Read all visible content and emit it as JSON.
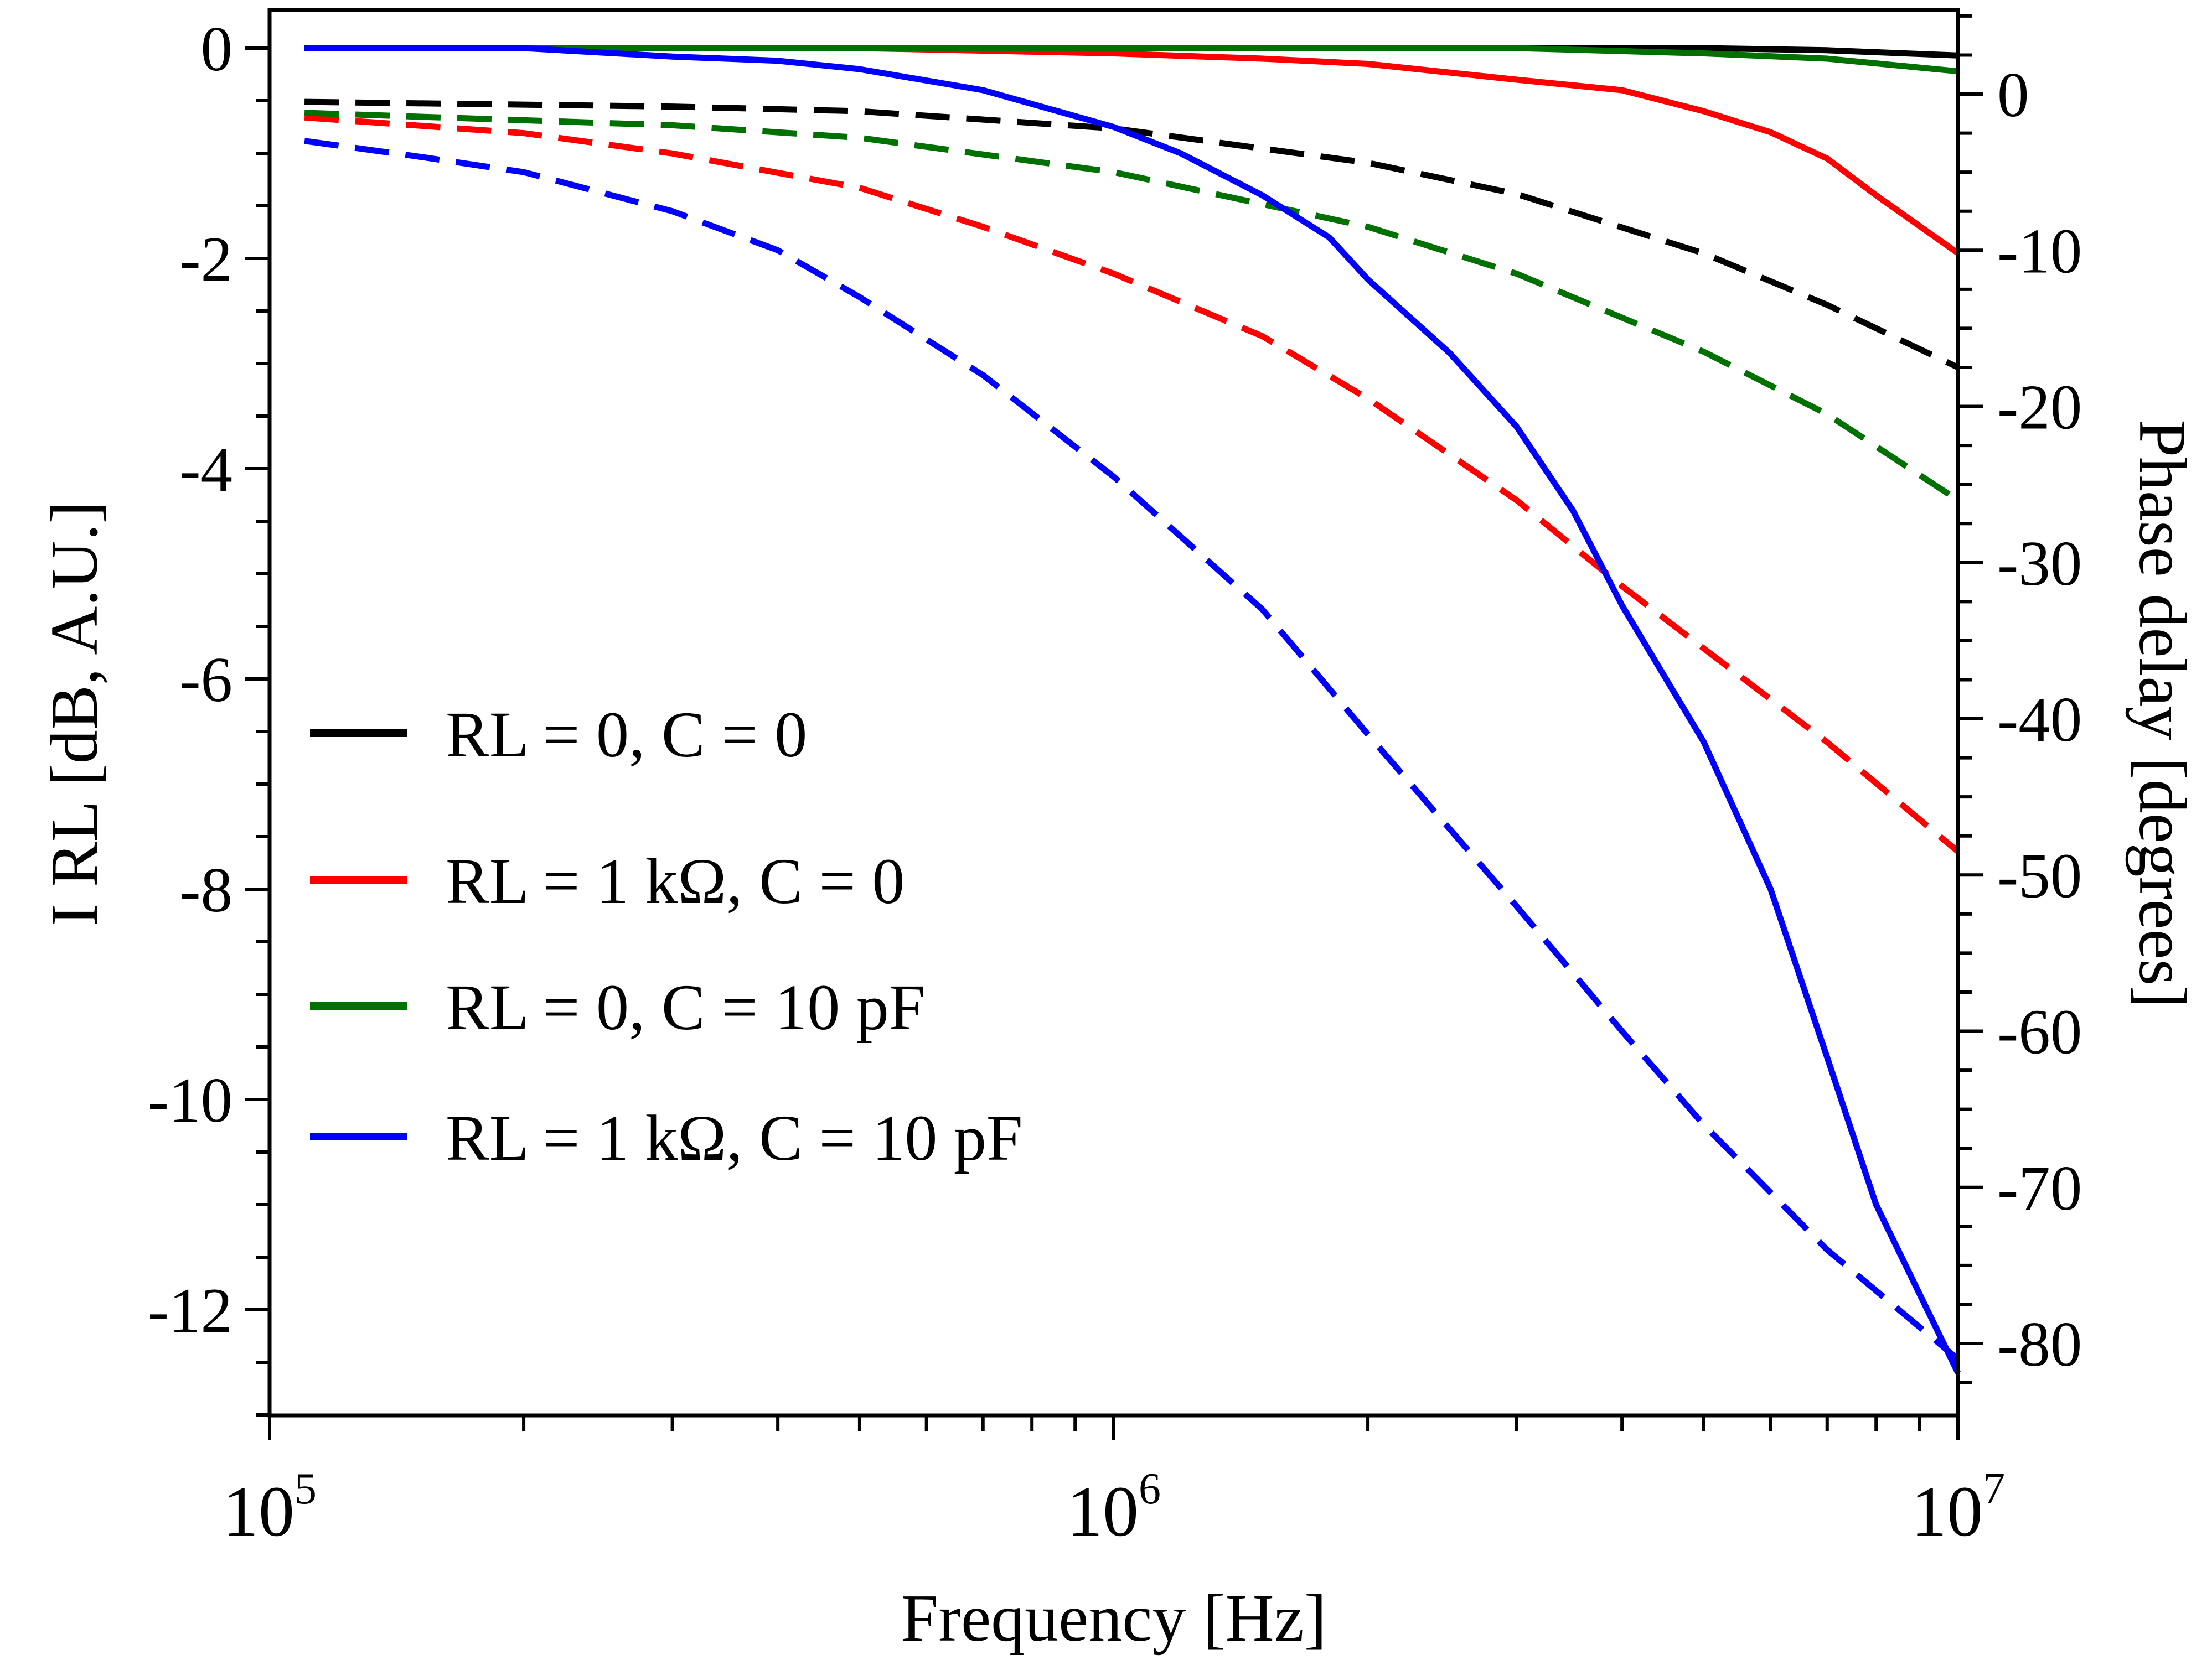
{
  "chart_data": {
    "type": "line",
    "xlabel": "Frequency [Hz]",
    "ylabel_left": "I RL [dB, A.U.]",
    "ylabel_right": "Phase delay [degrees]",
    "x_scale": "log",
    "xlim": [
      100000,
      10000000
    ],
    "ylim_left": [
      -13,
      0.3
    ],
    "ylim_right": [
      -85,
      5
    ],
    "x_ticks": [
      {
        "value": 100000,
        "base": "10",
        "exp": "5"
      },
      {
        "value": 1000000,
        "base": "10",
        "exp": "6"
      },
      {
        "value": 10000000,
        "base": "10",
        "exp": "7"
      }
    ],
    "y_ticks_left": [
      {
        "value": 0,
        "label": "0"
      },
      {
        "value": -2,
        "label": "-2"
      },
      {
        "value": -4,
        "label": "-4"
      },
      {
        "value": -6,
        "label": "-6"
      },
      {
        "value": -8,
        "label": "-8"
      },
      {
        "value": -10,
        "label": "-10"
      },
      {
        "value": -12,
        "label": "-12"
      }
    ],
    "y_ticks_right": [
      {
        "value": 0,
        "label": "0"
      },
      {
        "value": -10,
        "label": "-10"
      },
      {
        "value": -20,
        "label": "-20"
      },
      {
        "value": -30,
        "label": "-30"
      },
      {
        "value": -40,
        "label": "-40"
      },
      {
        "value": -50,
        "label": "-50"
      },
      {
        "value": -60,
        "label": "-60"
      },
      {
        "value": -70,
        "label": "-70"
      },
      {
        "value": -80,
        "label": "-80"
      }
    ],
    "grid": false,
    "legend_position": "center-left",
    "series": [
      {
        "name": "RL = 0, C = 0",
        "color": "#000000",
        "amplitude_db": [
          [
            110000,
            0.0
          ],
          [
            500000,
            0.0
          ],
          [
            1000000,
            0.0
          ],
          [
            2000000,
            0.0
          ],
          [
            5000000,
            0.0
          ],
          [
            7000000,
            -0.02
          ],
          [
            10000000,
            -0.07
          ]
        ],
        "phase_deg": [
          [
            110000,
            -0.5
          ],
          [
            300000,
            -0.8
          ],
          [
            500000,
            -1.1
          ],
          [
            1000000,
            -2.2
          ],
          [
            2000000,
            -4.4
          ],
          [
            3000000,
            -6.4
          ],
          [
            5000000,
            -10.2
          ],
          [
            7000000,
            -13.5
          ],
          [
            10000000,
            -17.5
          ]
        ]
      },
      {
        "name": "RL = 1 kΩ, C = 0",
        "color": "#ff0000",
        "amplitude_db": [
          [
            110000,
            0.0
          ],
          [
            500000,
            0.0
          ],
          [
            1000000,
            -0.05
          ],
          [
            1500000,
            -0.1
          ],
          [
            2000000,
            -0.15
          ],
          [
            3000000,
            -0.3
          ],
          [
            4000000,
            -0.4
          ],
          [
            5000000,
            -0.6
          ],
          [
            6000000,
            -0.8
          ],
          [
            7000000,
            -1.05
          ],
          [
            8000000,
            -1.4
          ],
          [
            10000000,
            -1.95
          ]
        ],
        "phase_deg": [
          [
            110000,
            -1.5
          ],
          [
            200000,
            -2.5
          ],
          [
            300000,
            -3.8
          ],
          [
            500000,
            -6.0
          ],
          [
            700000,
            -8.5
          ],
          [
            1000000,
            -11.5
          ],
          [
            1500000,
            -15.5
          ],
          [
            2000000,
            -19.5
          ],
          [
            3000000,
            -26.0
          ],
          [
            4000000,
            -31.5
          ],
          [
            5000000,
            -35.5
          ],
          [
            7000000,
            -41.5
          ],
          [
            10000000,
            -48.5
          ]
        ]
      },
      {
        "name": "RL = 0, C = 10 pF",
        "color": "#007000",
        "amplitude_db": [
          [
            110000,
            0.0
          ],
          [
            1000000,
            0.0
          ],
          [
            3000000,
            0.0
          ],
          [
            5000000,
            -0.05
          ],
          [
            7000000,
            -0.1
          ],
          [
            10000000,
            -0.22
          ]
        ],
        "phase_deg": [
          [
            110000,
            -1.2
          ],
          [
            300000,
            -2.0
          ],
          [
            500000,
            -2.8
          ],
          [
            1000000,
            -5.0
          ],
          [
            2000000,
            -8.5
          ],
          [
            3000000,
            -11.5
          ],
          [
            5000000,
            -16.5
          ],
          [
            7000000,
            -20.5
          ],
          [
            10000000,
            -26.0
          ]
        ]
      },
      {
        "name": "RL = 1 kΩ, C = 10 pF",
        "color": "#0000ff",
        "amplitude_db": [
          [
            110000,
            0.0
          ],
          [
            200000,
            0.0
          ],
          [
            300000,
            -0.08
          ],
          [
            400000,
            -0.12
          ],
          [
            500000,
            -0.2
          ],
          [
            700000,
            -0.4
          ],
          [
            1000000,
            -0.75
          ],
          [
            1200000,
            -1.0
          ],
          [
            1500000,
            -1.4
          ],
          [
            1800000,
            -1.8
          ],
          [
            2000000,
            -2.2
          ],
          [
            2500000,
            -2.9
          ],
          [
            3000000,
            -3.6
          ],
          [
            3500000,
            -4.4
          ],
          [
            4000000,
            -5.3
          ],
          [
            5000000,
            -6.6
          ],
          [
            6000000,
            -8.0
          ],
          [
            7000000,
            -9.6
          ],
          [
            8000000,
            -11.0
          ],
          [
            10000000,
            -12.6
          ]
        ],
        "phase_deg": [
          [
            110000,
            -3.0
          ],
          [
            150000,
            -4.0
          ],
          [
            200000,
            -5.0
          ],
          [
            300000,
            -7.5
          ],
          [
            400000,
            -10.0
          ],
          [
            500000,
            -13.0
          ],
          [
            700000,
            -18.0
          ],
          [
            1000000,
            -24.5
          ],
          [
            1500000,
            -33.0
          ],
          [
            2000000,
            -41.0
          ],
          [
            3000000,
            -52.0
          ],
          [
            4000000,
            -60.0
          ],
          [
            5000000,
            -66.0
          ],
          [
            7000000,
            -74.0
          ],
          [
            10000000,
            -81.0
          ]
        ]
      }
    ]
  }
}
